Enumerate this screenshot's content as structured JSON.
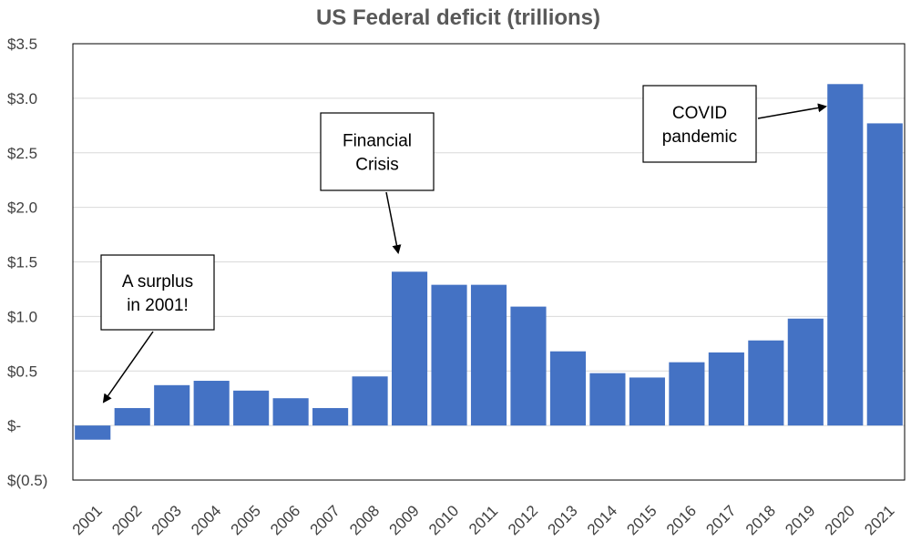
{
  "chart_data": {
    "type": "bar",
    "title": "US Federal deficit (trillions)",
    "xlabel": "",
    "ylabel": "",
    "categories": [
      "2001",
      "2002",
      "2003",
      "2004",
      "2005",
      "2006",
      "2007",
      "2008",
      "2009",
      "2010",
      "2011",
      "2012",
      "2013",
      "2014",
      "2015",
      "2016",
      "2017",
      "2018",
      "2019",
      "2020",
      "2021"
    ],
    "values": [
      -0.13,
      0.16,
      0.37,
      0.41,
      0.32,
      0.25,
      0.16,
      0.45,
      1.41,
      1.29,
      1.29,
      1.09,
      0.68,
      0.48,
      0.44,
      0.58,
      0.67,
      0.78,
      0.98,
      3.13,
      2.77
    ],
    "ylim": [
      -0.5,
      3.5
    ],
    "yticks": [
      3.5,
      3.0,
      2.5,
      2.0,
      1.5,
      1.0,
      0.5,
      0,
      -0.5
    ],
    "ytick_labels": [
      "$3.5",
      "$3.0",
      "$2.5",
      "$2.0",
      "$1.5",
      "$1.0",
      "$0.5",
      "$-",
      "$(0.5)"
    ],
    "grid": true,
    "bar_color": "#4472C4",
    "annotations": [
      {
        "lines": [
          "A surplus",
          "in 2001!"
        ],
        "target_category": "2001"
      },
      {
        "lines": [
          "Financial",
          "Crisis"
        ],
        "target_category": "2009"
      },
      {
        "lines": [
          "COVID",
          "pandemic"
        ],
        "target_category": "2020"
      }
    ]
  }
}
